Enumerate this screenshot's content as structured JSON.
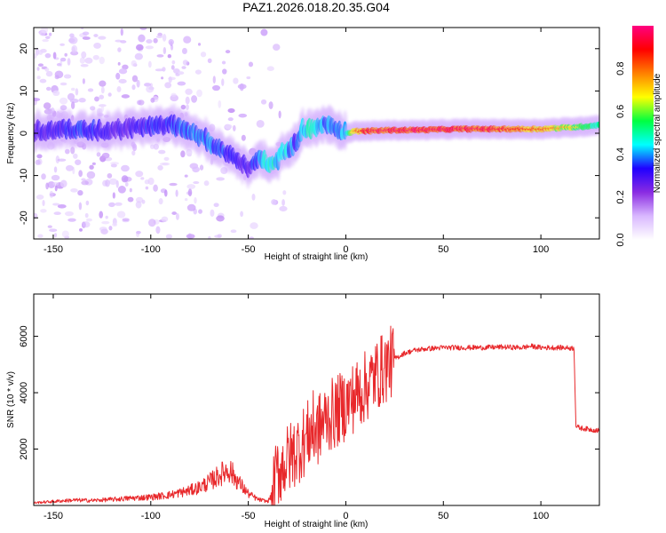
{
  "figure": {
    "title": "PAZ1.2026.018.20.35.G04"
  },
  "colorbar": {
    "label": "Normalized spectral amplitude",
    "ticks": [
      "0.0",
      "0.2",
      "0.4",
      "0.6",
      "0.8"
    ],
    "tick_values": [
      0.0,
      0.2,
      0.4,
      0.6,
      0.8
    ],
    "range": [
      0,
      1
    ],
    "colors": [
      "#ffffff",
      "#d9b8ff",
      "#8a2be2",
      "#2000ff",
      "#00ffff",
      "#00ff40",
      "#ffff00",
      "#ff8000",
      "#ff0000",
      "#ff0080"
    ]
  },
  "chart_data": [
    {
      "type": "heatmap",
      "title": "PAZ1.2026.018.20.35.G04",
      "xlabel": "Height of straight line (km)",
      "ylabel": "Frequency (Hz)",
      "xlim": [
        -160,
        130
      ],
      "ylim": [
        -25,
        25
      ],
      "x_ticks": [
        -150,
        -100,
        -50,
        0,
        50,
        100
      ],
      "y_ticks": [
        -20,
        -10,
        0,
        10,
        20
      ],
      "ridge": {
        "description": "Dominant frequency track (peak spectral amplitude) vs height",
        "x": [
          -155,
          -140,
          -130,
          -120,
          -110,
          -100,
          -90,
          -80,
          -70,
          -60,
          -50,
          -45,
          -40,
          -35,
          -30,
          -25,
          -22,
          -18,
          -10,
          -5,
          0,
          5,
          10,
          20,
          40,
          60,
          80,
          100,
          120,
          130
        ],
        "y": [
          0.5,
          1,
          0.5,
          0.5,
          1.5,
          1.5,
          2,
          1,
          -2,
          -5,
          -8,
          -6,
          -7,
          -6,
          -4,
          -2,
          1,
          1,
          2,
          1.5,
          0,
          0.5,
          0.5,
          0.7,
          0.8,
          1,
          1,
          1,
          1.5,
          2
        ],
        "amplitude": [
          0.3,
          0.35,
          0.35,
          0.3,
          0.3,
          0.35,
          0.35,
          0.4,
          0.4,
          0.35,
          0.3,
          0.4,
          0.5,
          0.45,
          0.45,
          0.35,
          0.45,
          0.5,
          0.4,
          0.4,
          0.45,
          0.7,
          0.85,
          0.9,
          0.9,
          0.9,
          0.85,
          0.75,
          0.6,
          0.5
        ]
      }
    },
    {
      "type": "line",
      "xlabel": "Height of straight line (km)",
      "ylabel": "SNR (10 * v/v)",
      "xlim": [
        -160,
        130
      ],
      "ylim": [
        0,
        7500
      ],
      "x_ticks": [
        -150,
        -100,
        -50,
        0,
        50,
        100
      ],
      "y_ticks": [
        2000,
        4000,
        6000
      ],
      "series": [
        {
          "name": "SNR",
          "color": "#e8282b",
          "x": [
            -160,
            -150,
            -140,
            -130,
            -120,
            -110,
            -100,
            -90,
            -80,
            -75,
            -70,
            -65,
            -60,
            -55,
            -50,
            -45,
            -40,
            -38,
            -35,
            -30,
            -25,
            -20,
            -17,
            -15,
            -10,
            -5,
            0,
            5,
            10,
            15,
            20,
            25,
            30,
            35,
            40,
            50,
            60,
            70,
            80,
            90,
            95,
            100,
            110,
            117,
            118,
            120,
            125,
            130
          ],
          "y": [
            80,
            120,
            160,
            150,
            180,
            220,
            250,
            320,
            450,
            550,
            700,
            900,
            1100,
            700,
            350,
            180,
            120,
            300,
            1200,
            1600,
            2000,
            2400,
            2800,
            2600,
            3100,
            3300,
            3600,
            3900,
            4200,
            4600,
            4900,
            5200,
            5400,
            5500,
            5550,
            5600,
            5600,
            5600,
            5620,
            5600,
            5650,
            5600,
            5600,
            5580,
            2800,
            2750,
            2700,
            2650
          ]
        }
      ]
    }
  ]
}
